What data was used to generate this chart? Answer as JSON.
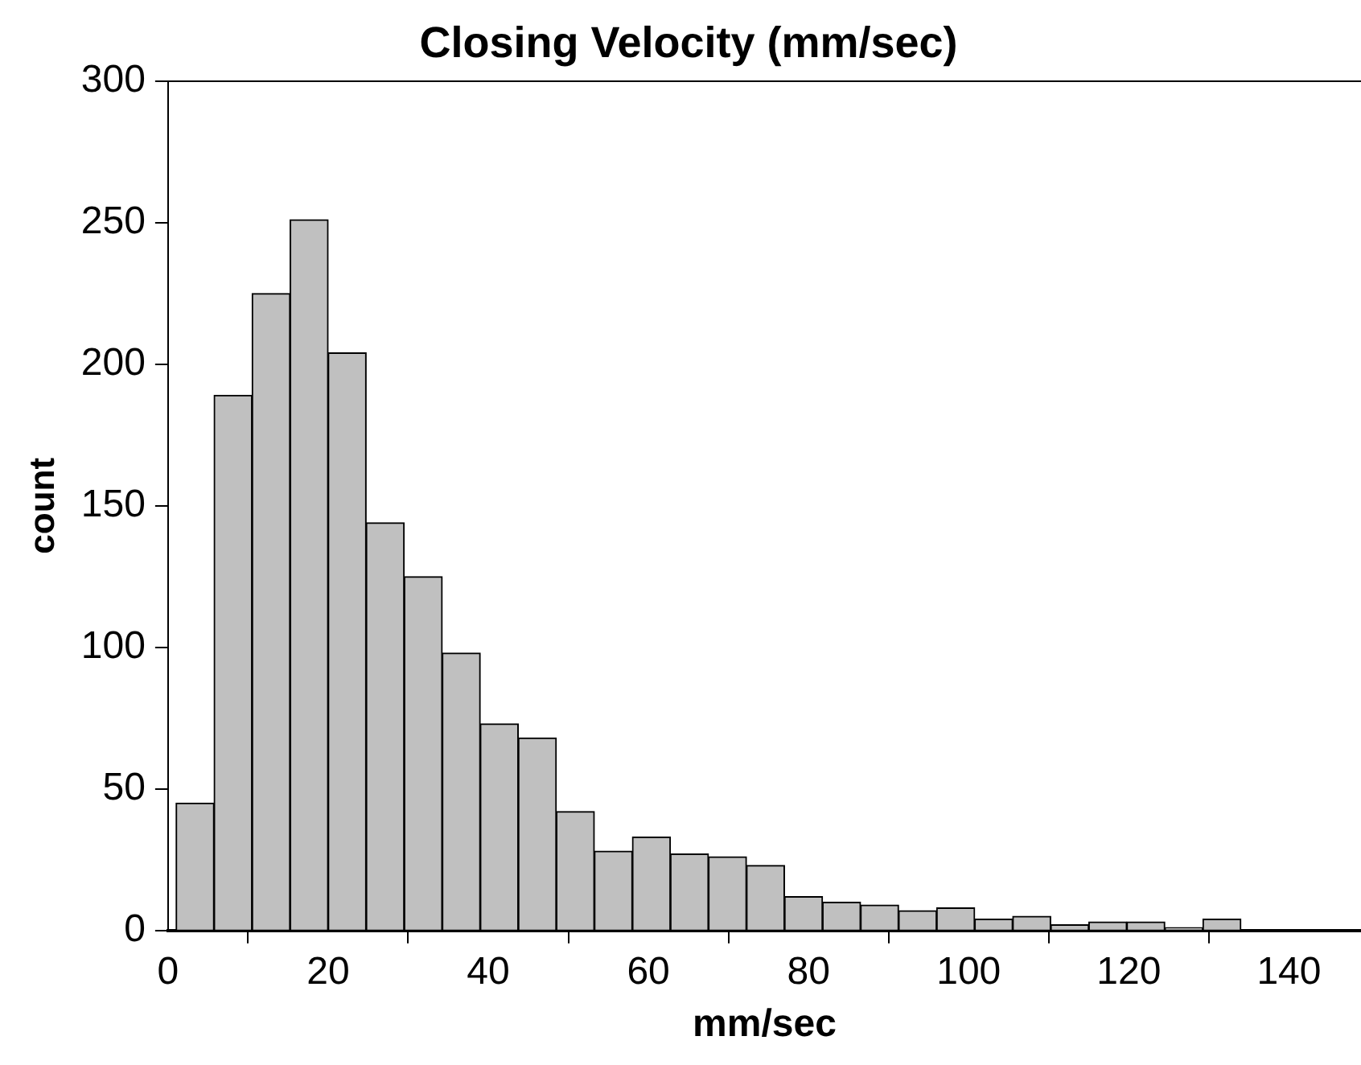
{
  "chart_data": {
    "type": "histogram",
    "title": "Closing Velocity (mm/sec)",
    "xlabel": "mm/sec",
    "ylabel": "count",
    "bins": [
      1,
      5.75,
      10.5,
      15.25,
      20,
      24.75,
      29.5,
      34.25,
      39,
      43.75,
      48.5,
      53.25,
      58,
      62.75,
      67.5,
      72.25,
      77,
      81.75,
      86.5,
      91.25,
      96,
      100.75,
      105.5,
      110.25,
      115,
      119.75,
      124.5,
      129.25,
      134
    ],
    "values": [
      45,
      189,
      225,
      251,
      204,
      144,
      125,
      98,
      73,
      68,
      42,
      28,
      33,
      27,
      26,
      23,
      12,
      10,
      9,
      7,
      8,
      4,
      5,
      2,
      3,
      3,
      1,
      4
    ],
    "color": "#c0c0c0",
    "xlim": [
      0,
      149
    ],
    "xticks": [
      0,
      20,
      40,
      60,
      80,
      100,
      120,
      140
    ],
    "ylim": [
      0,
      300
    ],
    "yticks": [
      0,
      50,
      100,
      150,
      200,
      250,
      300
    ],
    "grid": false,
    "legend": false
  }
}
